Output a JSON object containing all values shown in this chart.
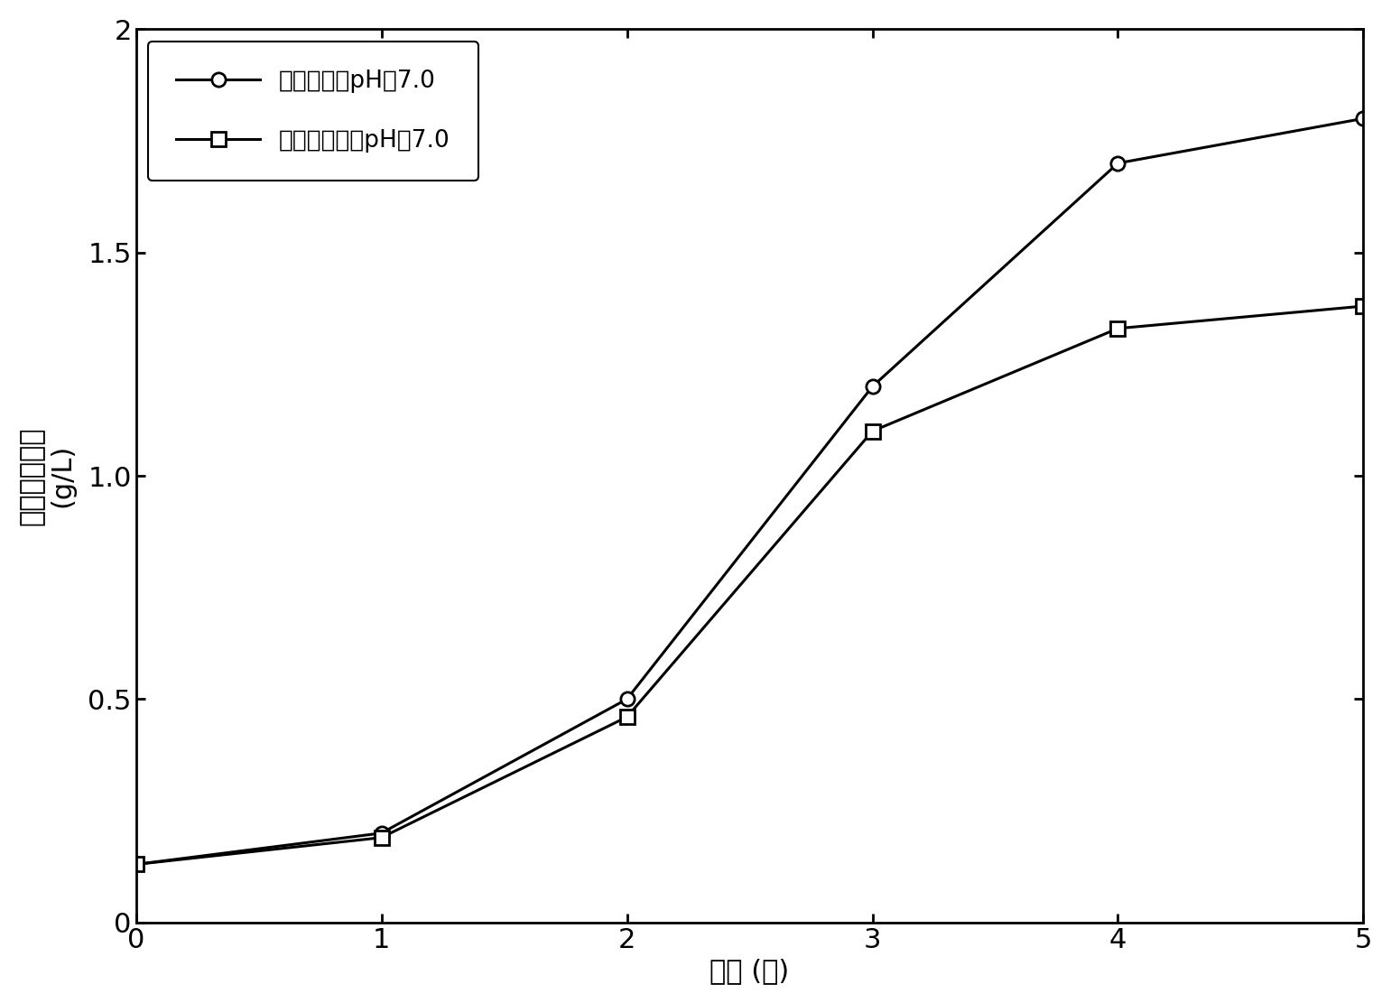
{
  "x": [
    0,
    1,
    2,
    3,
    4,
    5
  ],
  "series1_y": [
    0.13,
    0.2,
    0.5,
    1.2,
    1.7,
    1.8
  ],
  "series2_y": [
    0.13,
    0.19,
    0.46,
    1.1,
    1.33,
    1.38
  ],
  "series1_label": "添加乙酸调pH为7.0",
  "series2_label": "不添加乙酸调pH为7.0",
  "xlabel": "时间 (天)",
  "ylabel_line1": "细胞干重浓度",
  "ylabel_line2": "(g/L)",
  "xlim": [
    0,
    5
  ],
  "ylim": [
    0,
    2
  ],
  "xticks": [
    0,
    1,
    2,
    3,
    4,
    5
  ],
  "yticks": [
    0,
    0.5,
    1.0,
    1.5,
    2.0
  ],
  "ytick_labels": [
    "0",
    "0.5",
    "1.0",
    "1.5",
    "2"
  ],
  "line_color": "#000000",
  "marker1": "o",
  "marker2": "s",
  "markersize": 11,
  "linewidth": 2.2,
  "label_fontsize": 22,
  "tick_fontsize": 22,
  "legend_fontsize": 19,
  "background_color": "#ffffff"
}
